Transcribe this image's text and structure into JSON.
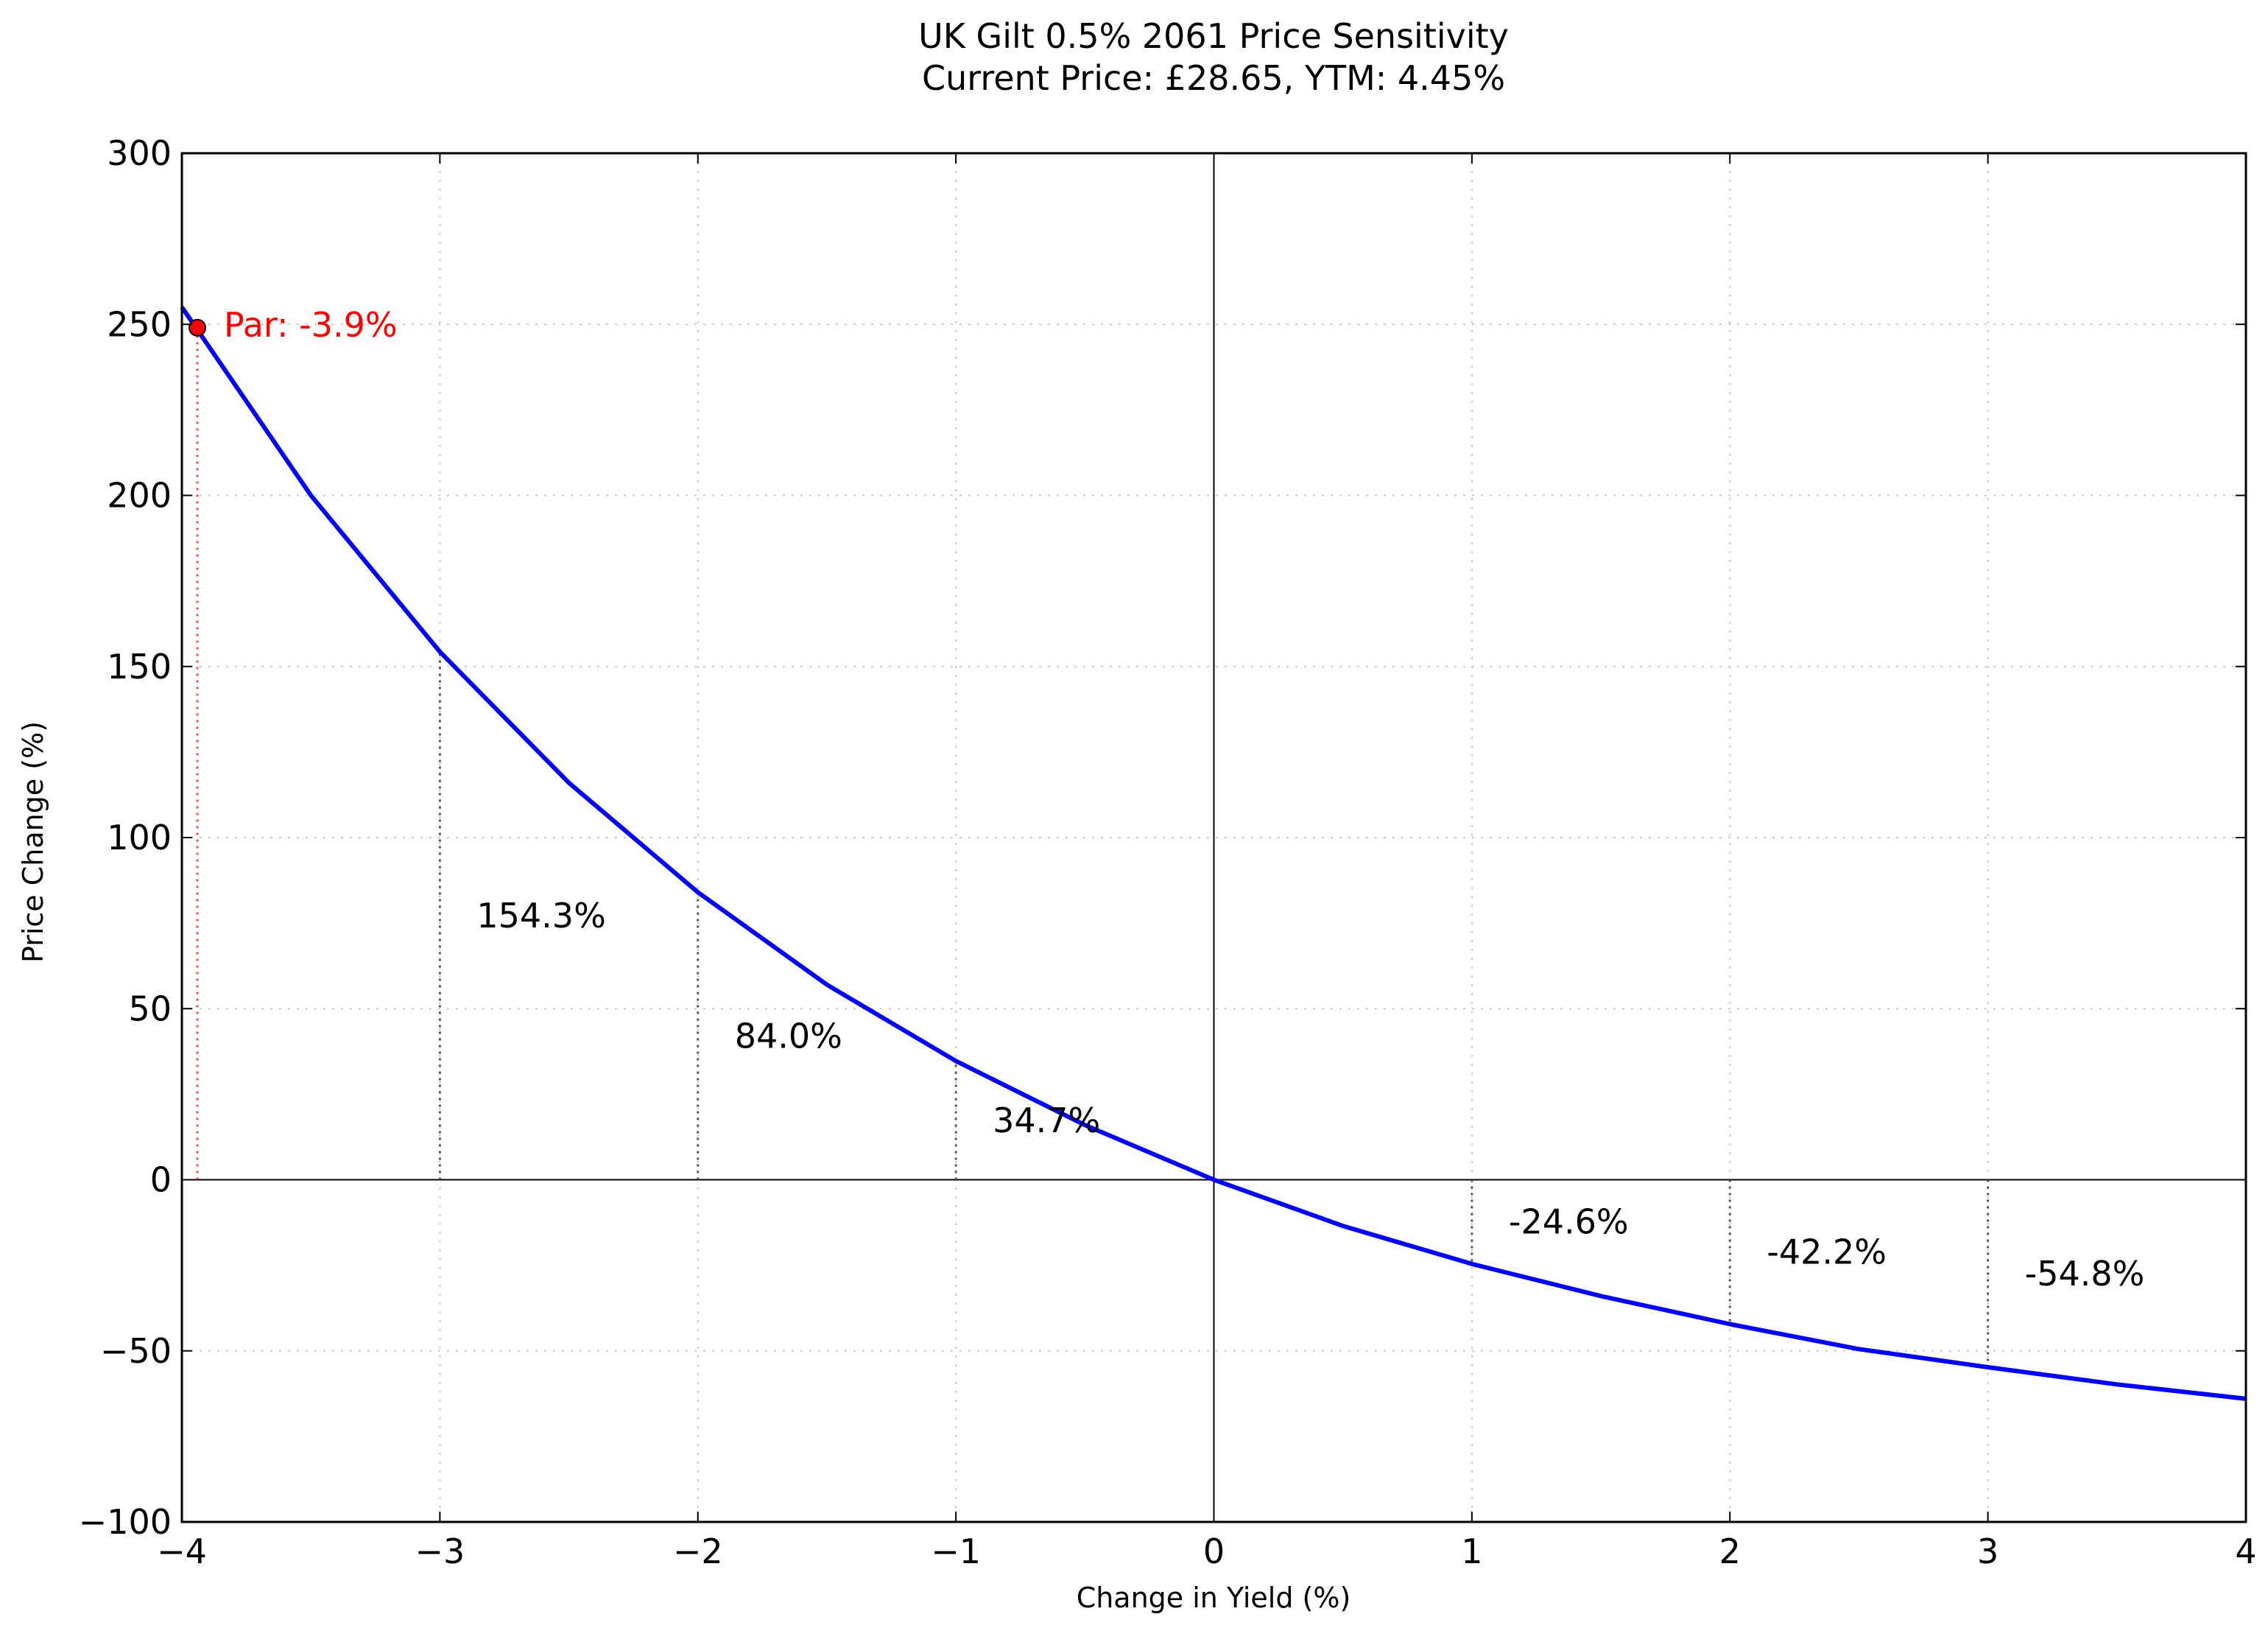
{
  "chart_data": {
    "type": "line",
    "title": "UK Gilt 0.5% 2061 Price Sensitivity",
    "subtitle": "Current Price: £28.65, YTM: 4.45%",
    "xlabel": "Change in Yield (%)",
    "ylabel": "Price Change (%)",
    "xlim": [
      -4,
      4
    ],
    "ylim": [
      -100,
      300
    ],
    "grid": true,
    "x_ticks": [
      -4,
      -3,
      -2,
      -1,
      0,
      1,
      2,
      3,
      4
    ],
    "x_tick_labels": [
      "−4",
      "−3",
      "−2",
      "−1",
      "0",
      "1",
      "2",
      "3",
      "4"
    ],
    "y_ticks": [
      -100,
      -50,
      0,
      50,
      100,
      150,
      200,
      250,
      300
    ],
    "y_tick_labels": [
      "−100",
      "−50",
      "0",
      "50",
      "100",
      "150",
      "200",
      "250",
      "300"
    ],
    "series": [
      {
        "color": "#0000ff",
        "x": [
          -4,
          -3.5,
          -3,
          -2.5,
          -2,
          -1.5,
          -1,
          -0.5,
          0,
          0.5,
          1,
          1.5,
          2,
          2.5,
          3,
          3.5,
          4
        ],
        "y": [
          255,
          200,
          154.3,
          116,
          84.0,
          57,
          34.7,
          16,
          0,
          -13.5,
          -24.6,
          -34,
          -42.2,
          -49.5,
          -54.8,
          -59.8,
          -64
        ]
      }
    ],
    "annotations": [
      {
        "x": -3,
        "y": 154.3,
        "label": "154.3%"
      },
      {
        "x": -2,
        "y": 84.0,
        "label": "84.0%"
      },
      {
        "x": -1,
        "y": 34.7,
        "label": "34.7%"
      },
      {
        "x": 1,
        "y": -24.6,
        "label": "-24.6%"
      },
      {
        "x": 2,
        "y": -42.2,
        "label": "-42.2%"
      },
      {
        "x": 3,
        "y": -54.8,
        "label": "-54.8%"
      }
    ],
    "par_marker": {
      "x": -3.94,
      "y": 249,
      "label": "Par: -3.9%",
      "color": "#ff0000"
    }
  }
}
